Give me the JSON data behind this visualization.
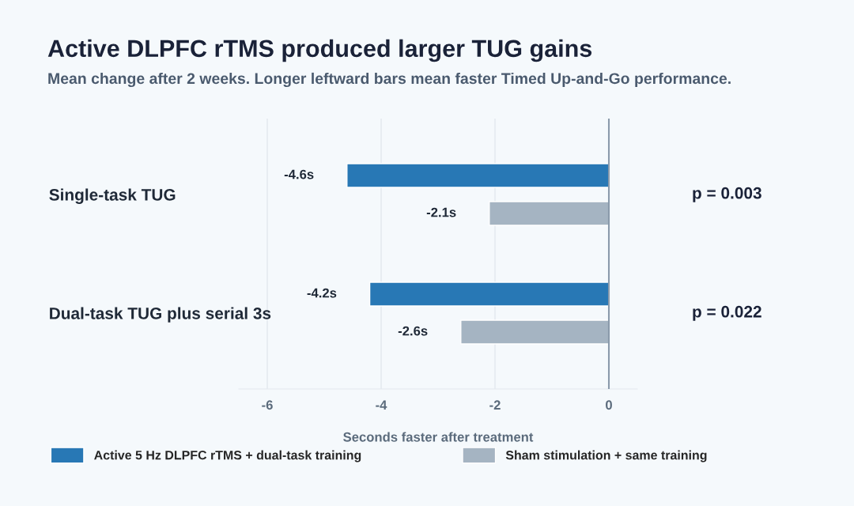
{
  "chart_data": {
    "type": "bar",
    "orientation": "horizontal",
    "title": "Active DLPFC rTMS produced larger TUG gains",
    "subtitle": "Mean change after 2 weeks. Longer leftward bars mean faster Timed Up-and-Go performance.",
    "xlabel": "Seconds faster after treatment",
    "categories": [
      "Single-task TUG",
      "Dual-task TUG plus serial 3s"
    ],
    "series": [
      {
        "name": "Active 5 Hz DLPFC rTMS + dual-task training",
        "color": "#2878b5",
        "values": [
          -4.6,
          -4.2
        ],
        "value_labels": [
          "-4.6s",
          "-4.2s"
        ]
      },
      {
        "name": "Sham stimulation + same training",
        "color": "#a5b4c2",
        "values": [
          -2.1,
          -2.6
        ],
        "value_labels": [
          "-2.1s",
          "-2.6s"
        ]
      }
    ],
    "xlim": [
      -6.5,
      0.5
    ],
    "xticks": [
      -6,
      -4,
      -2,
      0
    ],
    "ref_lines": [
      {
        "axis": "x",
        "value": 0,
        "color": "#8a9aab"
      }
    ],
    "annotations": [
      "p = 0.003",
      "p = 0.022"
    ],
    "grid": "x",
    "legend": "bottom"
  }
}
